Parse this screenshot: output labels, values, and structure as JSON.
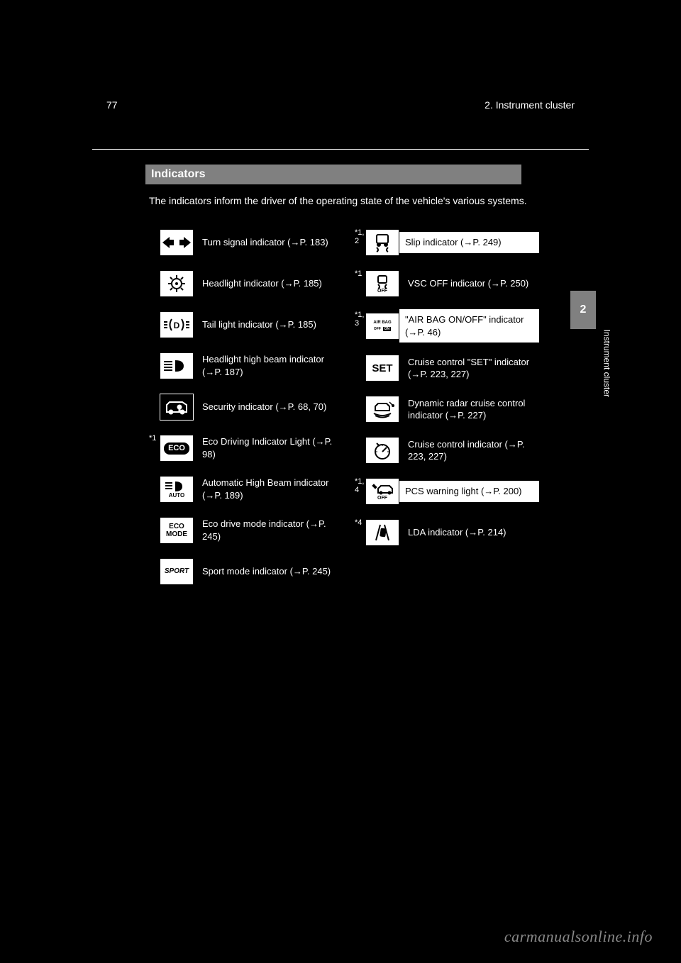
{
  "page_number_text": "77",
  "breadcrumb": "2. Instrument cluster",
  "section_title": "Indicators",
  "intro_text": "The indicators inform the driver of the operating state of the vehicle's various systems.",
  "side_tab": "2",
  "side_label": "Instrument cluster",
  "watermark": "carmanualsonline.info",
  "left_column": [
    {
      "sup": "",
      "icon": "arrows",
      "icon_text": "",
      "hl": false,
      "desc": "Turn signal indicator (→P. 183)"
    },
    {
      "sup": "",
      "icon": "headlight",
      "icon_text": "",
      "hl": false,
      "desc": "Headlight indicator (→P. 185)"
    },
    {
      "sup": "",
      "icon": "tail",
      "icon_text": "",
      "hl": false,
      "desc": "Tail light indicator (→P. 185)"
    },
    {
      "sup": "",
      "icon": "highbeam",
      "icon_text": "",
      "hl": false,
      "desc": "Headlight high beam indicator (→P. 187)"
    },
    {
      "sup": "",
      "icon": "security",
      "icon_text": "",
      "hl": false,
      "desc": "Security indicator (→P. 68, 70)"
    },
    {
      "sup": "*1",
      "icon": "eco",
      "icon_text": "ECO",
      "hl": false,
      "desc": "Eco Driving Indicator Light (→P. 98)"
    },
    {
      "sup": "",
      "icon": "autohigh",
      "icon_text": "AUTO",
      "hl": false,
      "desc": "Automatic High Beam indicator (→P. 189)"
    },
    {
      "sup": "",
      "icon": "ecomode",
      "icon_text": "ECO\nMODE",
      "hl": false,
      "desc": "Eco drive mode indicator (→P. 245)"
    },
    {
      "sup": "",
      "icon": "sport",
      "icon_text": "SPORT",
      "hl": false,
      "desc": "Sport mode indicator (→P. 245)"
    }
  ],
  "right_column": [
    {
      "sup": "*1, 2",
      "icon": "slip",
      "icon_text": "",
      "hl": true,
      "desc": "Slip indicator (→P. 249)"
    },
    {
      "sup": "*1",
      "icon": "vscoff",
      "icon_text": "OFF",
      "hl": false,
      "desc": "VSC OFF indicator (→P. 250)"
    },
    {
      "sup": "*1, 3",
      "icon": "airbag",
      "icon_text": "AIR BAG\nOFF  ON",
      "hl": true,
      "desc": "\"AIR BAG ON/OFF\" indicator (→P. 46)"
    },
    {
      "sup": "",
      "icon": "set",
      "icon_text": "SET",
      "hl": false,
      "desc": "Cruise control \"SET\" indicator (→P. 223, 227)"
    },
    {
      "sup": "",
      "icon": "radar",
      "icon_text": "",
      "hl": false,
      "desc": "Dynamic radar cruise control indicator (→P. 227)"
    },
    {
      "sup": "",
      "icon": "cruise",
      "icon_text": "",
      "hl": false,
      "desc": "Cruise control indicator (→P. 223, 227)"
    },
    {
      "sup": "*1, 4",
      "icon": "pcs",
      "icon_text": "OFF",
      "hl": true,
      "desc": "PCS warning light (→P. 200)"
    },
    {
      "sup": "*4",
      "icon": "lda",
      "icon_text": "",
      "hl": false,
      "desc": "LDA indicator (→P. 214)"
    }
  ]
}
